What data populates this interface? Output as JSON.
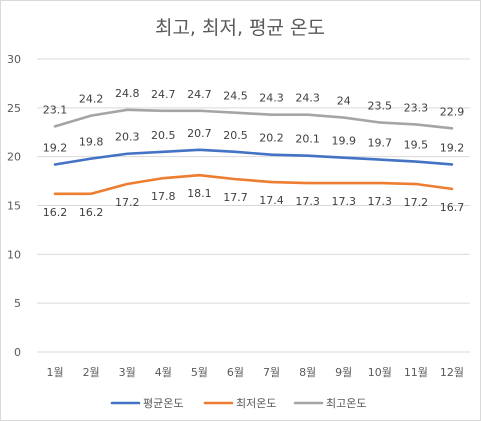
{
  "chart_data": {
    "type": "line",
    "title": "최고, 최저, 평균 온도",
    "categories": [
      "1월",
      "2월",
      "3월",
      "4월",
      "5월",
      "6월",
      "7월",
      "8월",
      "9월",
      "10월",
      "11월",
      "12월"
    ],
    "ylim": [
      0,
      30
    ],
    "yticks": [
      0,
      5,
      10,
      15,
      20,
      25,
      30
    ],
    "grid": true,
    "legend_position": "bottom",
    "series": [
      {
        "name": "평균온도",
        "color": "#4472c4",
        "values": [
          19.2,
          19.8,
          20.3,
          20.5,
          20.7,
          20.5,
          20.2,
          20.1,
          19.9,
          19.7,
          19.5,
          19.2
        ],
        "labels": [
          "19.2",
          "19.8",
          "20.3",
          "20.5",
          "20.7",
          "20.5",
          "20.2",
          "20.1",
          "19.9",
          "19.7",
          "19.5",
          "19.2"
        ]
      },
      {
        "name": "최저온도",
        "color": "#ed7d31",
        "values": [
          16.2,
          16.2,
          17.2,
          17.8,
          18.1,
          17.7,
          17.4,
          17.3,
          17.3,
          17.3,
          17.2,
          16.7
        ],
        "labels": [
          "16.2",
          "16.2",
          "17.2",
          "17.8",
          "18.1",
          "17.7",
          "17.4",
          "17.3",
          "17.3",
          "17.3",
          "17.2",
          "16.7"
        ]
      },
      {
        "name": "최고온도",
        "color": "#a5a5a5",
        "values": [
          23.1,
          24.2,
          24.8,
          24.7,
          24.7,
          24.5,
          24.3,
          24.3,
          24,
          23.5,
          23.3,
          22.9
        ],
        "labels": [
          "23.1",
          "24.2",
          "24.8",
          "24.7",
          "24.7",
          "24.5",
          "24.3",
          "24.3",
          "24",
          "23.5",
          "23.3",
          "22.9"
        ]
      }
    ]
  }
}
